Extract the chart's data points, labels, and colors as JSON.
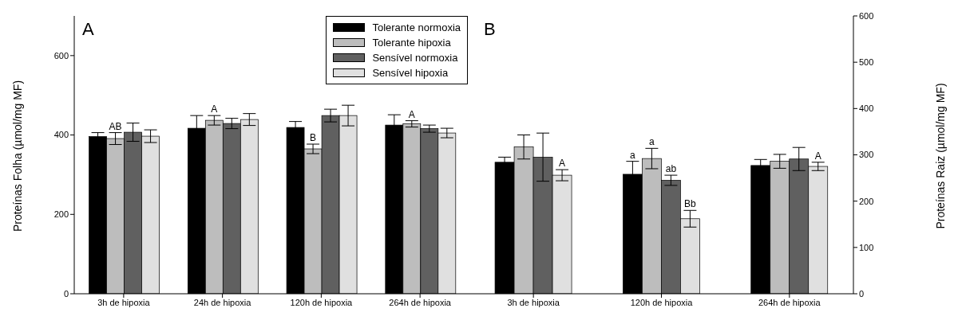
{
  "chart_data": [
    {
      "type": "bar",
      "title": "A",
      "ylabel": "Proteínas Folha (µmol/mg MF)",
      "categories": [
        "3h de hipoxia",
        "24h de hipoxia",
        "120h de hipoxia",
        "264h de hipoxia"
      ],
      "series": [
        {
          "name": "Tolerante normoxia",
          "color": "#000000",
          "values": [
            396,
            417,
            419,
            425
          ],
          "errors": [
            10,
            32,
            15,
            26
          ]
        },
        {
          "name": "Tolerante hipoxia",
          "color": "#bdbdbd",
          "values": [
            391,
            437,
            365,
            428
          ],
          "errors": [
            15,
            12,
            12,
            8
          ]
        },
        {
          "name": "Sensível normoxia",
          "color": "#606060",
          "values": [
            407,
            429,
            449,
            416
          ],
          "errors": [
            23,
            13,
            16,
            9
          ]
        },
        {
          "name": "Sensível hipoxia",
          "color": "#e0e0e0",
          "values": [
            397,
            439,
            449,
            405
          ],
          "errors": [
            16,
            15,
            26,
            12
          ]
        }
      ],
      "ylim": [
        0,
        700
      ],
      "yticks": [
        0,
        200,
        400,
        600
      ],
      "grid": false,
      "legend": "top right",
      "annotations": [
        {
          "text": "AB",
          "x": "3h de hipoxia",
          "y": 391
        },
        {
          "text": "A",
          "x": "24h de hipoxia",
          "y": 437
        },
        {
          "text": "B",
          "x": "120h de hipoxia",
          "y": 365
        },
        {
          "text": "A",
          "x": "264h de hipoxia",
          "y": 428
        }
      ]
    },
    {
      "type": "bar",
      "title": "B",
      "ylabel": "Proteínas Raiz (µmol/mg MF)",
      "categories": [
        "3h de hipoxia",
        "120h de hipoxia",
        "264h de hipoxia"
      ],
      "series": [
        {
          "color": "#000000",
          "values": [
            284,
            258,
            277
          ],
          "errors": [
            11,
            28,
            13
          ]
        },
        {
          "color": "#bdbdbd",
          "values": [
            317,
            292,
            286
          ],
          "errors": [
            26,
            22,
            15
          ]
        },
        {
          "color": "#606060",
          "values": [
            295,
            245,
            291
          ],
          "errors": [
            52,
            11,
            25
          ]
        },
        {
          "color": "#e0e0e0",
          "values": [
            256,
            162,
            275
          ],
          "errors": [
            12,
            18,
            9
          ]
        }
      ],
      "ylim": [
        0,
        600
      ],
      "yticks": [
        0,
        100,
        200,
        300,
        400,
        500,
        600
      ],
      "grid": false,
      "legend": false,
      "annotations": [
        {
          "text": "A",
          "x": "3h de hipoxia",
          "y": 256
        },
        {
          "text": "a",
          "x": "120h de hipoxia",
          "y": 258
        },
        {
          "text": "a",
          "x": "120h de hipoxia",
          "y": 292
        },
        {
          "text": "ab",
          "x": "120h de hipoxia",
          "y": 245
        },
        {
          "text": "Bb",
          "x": "120h de hipoxia",
          "y": 162
        },
        {
          "text": "A",
          "x": "264h de hipoxia",
          "y": 275
        }
      ]
    }
  ]
}
